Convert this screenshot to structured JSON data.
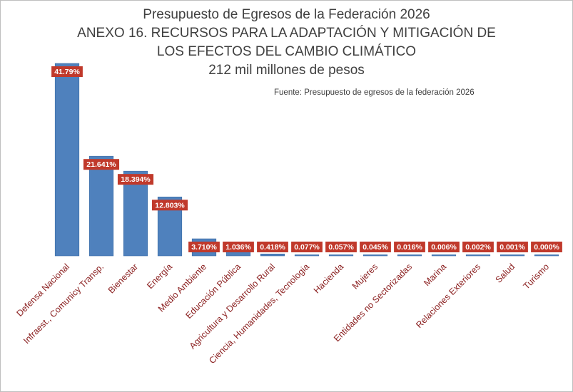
{
  "chart_data": {
    "type": "bar",
    "title_lines": [
      "Presupuesto de Egresos de la Federación  2026",
      "ANEXO 16. RECURSOS PARA LA ADAPTACIÓN Y MITIGACIÓN DE",
      "LOS EFECTOS DEL CAMBIO CLIMÁTICO",
      "212 mil millones de pesos"
    ],
    "source": "Fuente: Presupuesto de egresos de la federación 2026",
    "categories": [
      "Defensa Nacional",
      "Infraest., Comunicy Transp.",
      "Bienestar",
      "Energía",
      "Medio Ambiente",
      "Educación Pública",
      "Agricultura y Desarrollo Rural",
      "Ciencia, Humanidades, Tecnologia",
      "Hacienda",
      "Mujeres",
      "Entidades no Sectorizadas",
      "Marina",
      "Relaciones Exteriores",
      "Salud",
      "Turismo"
    ],
    "values": [
      41.79,
      21.641,
      18.394,
      12.803,
      3.71,
      1.036,
      0.418,
      0.077,
      0.057,
      0.045,
      0.016,
      0.006,
      0.002,
      0.001,
      0.0
    ],
    "data_labels": [
      "41.79%",
      "21.641%",
      "18.394%",
      "12.803%",
      "3.710%",
      "1.036%",
      "0.418%",
      "0.077%",
      "0.057%",
      "0.045%",
      "0.016%",
      "0.006%",
      "0.002%",
      "0.001%",
      "0.000%"
    ],
    "ylim": [
      0,
      42
    ],
    "grid": false,
    "colors": {
      "bar": "#4f81bd",
      "bar_edge": "#3a6aa3",
      "label_bg": "#c0392b",
      "category_text": "#8b2020",
      "title_text": "#404040"
    }
  }
}
